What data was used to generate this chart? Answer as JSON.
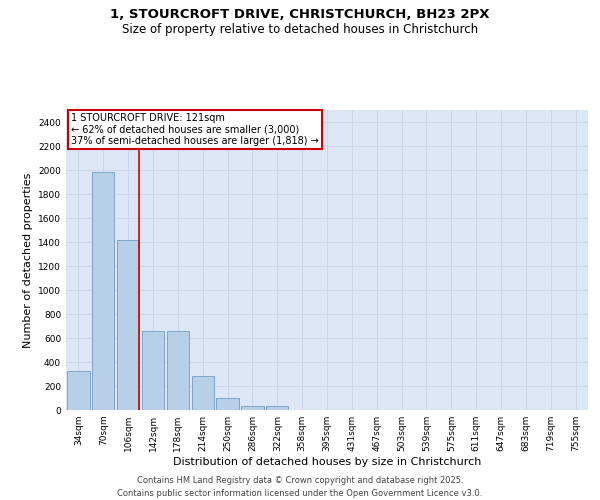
{
  "title_line1": "1, STOURCROFT DRIVE, CHRISTCHURCH, BH23 2PX",
  "title_line2": "Size of property relative to detached houses in Christchurch",
  "xlabel": "Distribution of detached houses by size in Christchurch",
  "ylabel": "Number of detached properties",
  "categories": [
    "34sqm",
    "70sqm",
    "106sqm",
    "142sqm",
    "178sqm",
    "214sqm",
    "250sqm",
    "286sqm",
    "322sqm",
    "358sqm",
    "395sqm",
    "431sqm",
    "467sqm",
    "503sqm",
    "539sqm",
    "575sqm",
    "611sqm",
    "647sqm",
    "683sqm",
    "719sqm",
    "755sqm"
  ],
  "values": [
    325,
    1980,
    1420,
    655,
    655,
    280,
    100,
    35,
    35,
    0,
    0,
    0,
    0,
    0,
    0,
    0,
    0,
    0,
    0,
    0,
    0
  ],
  "bar_color": "#b8cfe8",
  "bar_edge_color": "#6090c0",
  "vline_x_idx": 2,
  "vline_color": "#cc0000",
  "annotation_text": "1 STOURCROFT DRIVE: 121sqm\n← 62% of detached houses are smaller (3,000)\n37% of semi-detached houses are larger (1,818) →",
  "box_color": "#ffffff",
  "box_edge_color": "#cc0000",
  "ylim": [
    0,
    2500
  ],
  "yticks": [
    0,
    200,
    400,
    600,
    800,
    1000,
    1200,
    1400,
    1600,
    1800,
    2000,
    2200,
    2400
  ],
  "grid_color": "#c8d4e8",
  "bg_color": "#dce6f5",
  "footer_line1": "Contains HM Land Registry data © Crown copyright and database right 2025.",
  "footer_line2": "Contains public sector information licensed under the Open Government Licence v3.0.",
  "title_fontsize": 9.5,
  "subtitle_fontsize": 8.5,
  "tick_fontsize": 6.5,
  "axis_label_fontsize": 8,
  "annotation_fontsize": 7,
  "footer_fontsize": 6
}
